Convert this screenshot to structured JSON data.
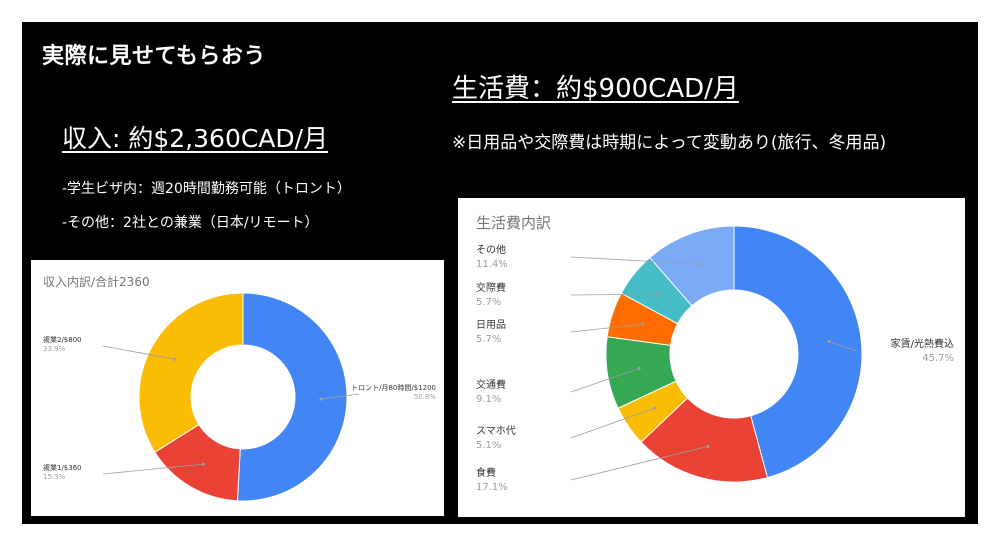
{
  "slide": {
    "title": "実際に見せてもらおう",
    "income_heading": "収入: 約$2,360CAD/月",
    "income_notes": [
      "-学生ビザ内：週20時間勤務可能（トロント）",
      "-その他：2社との兼業（日本/リモート）"
    ],
    "expense_heading": "生活費：約$900CAD/月",
    "expense_note": "※日用品や交際費は時期によって変動あり(旅行、冬用品)"
  },
  "chart_data": [
    {
      "type": "pie",
      "donut": true,
      "title": "収入内訳/合計2360",
      "slices": [
        {
          "label": "トロント/月80時間/$1200",
          "percent_label": "50.8%",
          "value": 1200,
          "color": "#4285F4"
        },
        {
          "label": "複業1/$360",
          "percent_label": "15.3%",
          "value": 360,
          "color": "#EA4335"
        },
        {
          "label": "複業2/$800",
          "percent_label": "33.9%",
          "value": 800,
          "color": "#FBBC04"
        }
      ]
    },
    {
      "type": "pie",
      "donut": true,
      "title": "生活費内訳",
      "slices": [
        {
          "label": "家賃/光熱費込",
          "percent_label": "45.7%",
          "value": 45.7,
          "color": "#4285F4"
        },
        {
          "label": "食費",
          "percent_label": "17.1%",
          "value": 17.1,
          "color": "#EA4335"
        },
        {
          "label": "スマホ代",
          "percent_label": "5.1%",
          "value": 5.1,
          "color": "#FBBC04"
        },
        {
          "label": "交通費",
          "percent_label": "9.1%",
          "value": 9.1,
          "color": "#34A853"
        },
        {
          "label": "日用品",
          "percent_label": "5.7%",
          "value": 5.7,
          "color": "#FF6D01"
        },
        {
          "label": "交際費",
          "percent_label": "5.7%",
          "value": 5.7,
          "color": "#46BDC6"
        },
        {
          "label": "その他",
          "percent_label": "11.4%",
          "value": 11.4,
          "color": "#7BAAF7"
        }
      ]
    }
  ]
}
